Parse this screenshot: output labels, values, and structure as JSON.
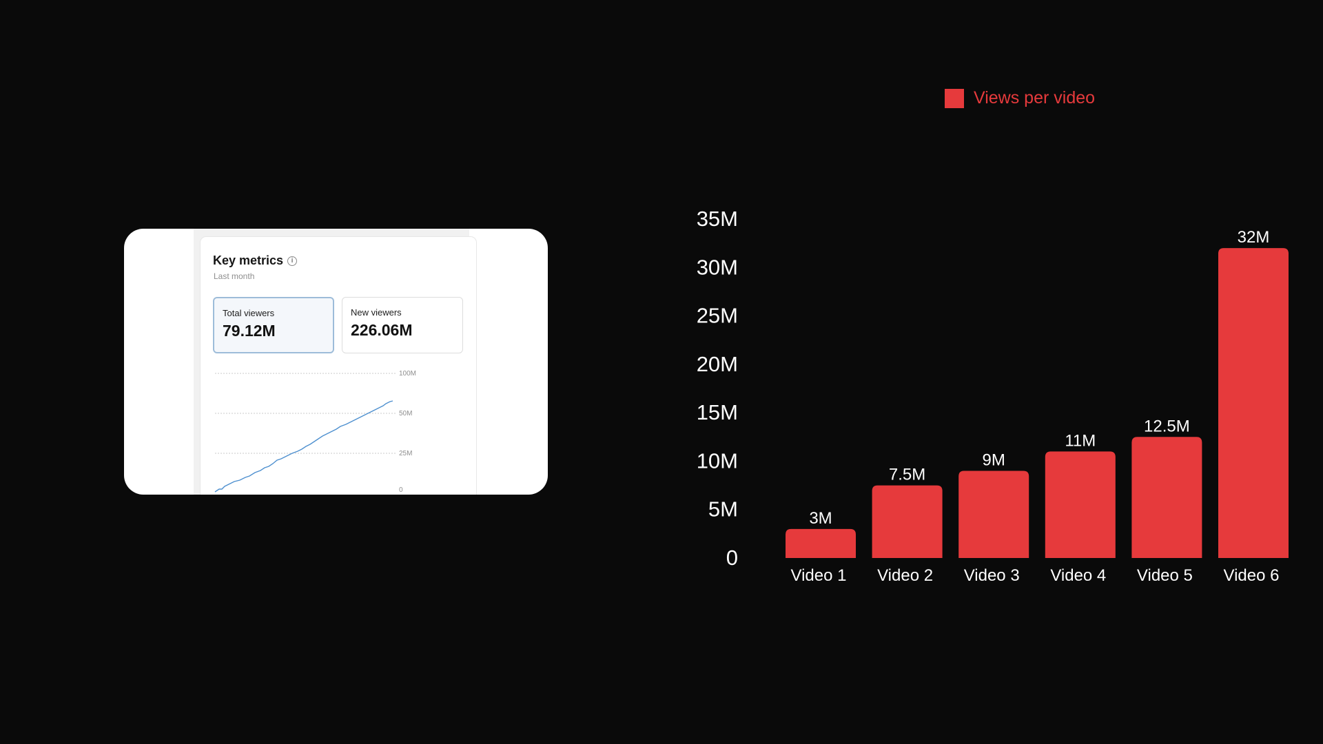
{
  "key_metrics": {
    "title": "Key metrics",
    "info_icon": "info-icon",
    "subtitle": "Last month",
    "cards": [
      {
        "label": "Total viewers",
        "value": "79.12M",
        "selected": true
      },
      {
        "label": "New viewers",
        "value": "226.06M",
        "selected": false
      }
    ],
    "mini_chart": {
      "type": "line",
      "y_tick_labels": [
        "100M",
        "50M",
        "25M",
        "0"
      ],
      "line_color": "#4d8fcf"
    }
  },
  "chart_data": {
    "type": "bar",
    "categories": [
      "Video 1",
      "Video 2",
      "Video 3",
      "Video 4",
      "Video 5",
      "Video 6"
    ],
    "series": [
      {
        "name": "Views per video",
        "values": [
          3,
          7.5,
          9,
          11,
          12.5,
          32
        ],
        "value_labels": [
          "3M",
          "7.5M",
          "9M",
          "11M",
          "12.5M",
          "32M"
        ],
        "color": "#e63a3c"
      }
    ],
    "y_ticks": [
      0,
      5,
      10,
      15,
      20,
      25,
      30,
      35
    ],
    "y_tick_labels": [
      "0",
      "5M",
      "10M",
      "15M",
      "20M",
      "25M",
      "30M",
      "35M"
    ],
    "ylim": [
      0,
      35
    ],
    "unit": "M",
    "grid": false,
    "legend_position": "top-right",
    "title": "",
    "xlabel": "",
    "ylabel": "",
    "text_color": "#ffffff",
    "background": "#0a0a0a"
  }
}
